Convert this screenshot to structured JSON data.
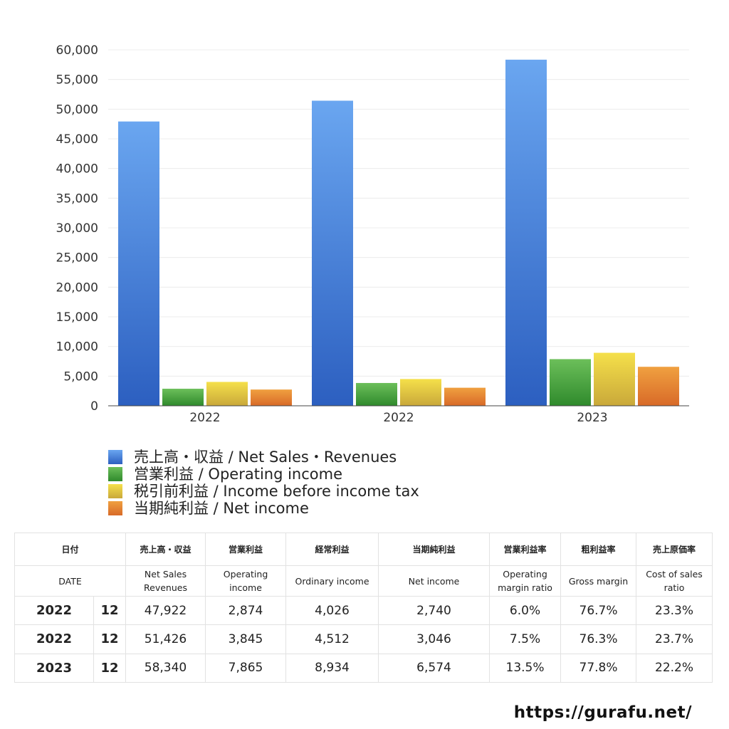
{
  "chart_data": {
    "type": "bar",
    "categories": [
      "2022",
      "2022",
      "2023"
    ],
    "series": [
      {
        "name": "売上高・収益 / Net Sales・Revenues",
        "values": [
          47922,
          51426,
          58340
        ]
      },
      {
        "name": "営業利益 / Operating income",
        "values": [
          2874,
          3845,
          7865
        ]
      },
      {
        "name": "税引前利益 / Income before income tax",
        "values": [
          4026,
          4512,
          8934
        ]
      },
      {
        "name": "当期純利益 / Net income",
        "values": [
          2740,
          3046,
          6574
        ]
      }
    ],
    "ylim": [
      0,
      60000
    ],
    "yticks": [
      "0",
      "5,000",
      "10,000",
      "15,000",
      "20,000",
      "25,000",
      "30,000",
      "35,000",
      "40,000",
      "45,000",
      "50,000",
      "55,000",
      "60,000"
    ],
    "ytick_values": [
      0,
      5000,
      10000,
      15000,
      20000,
      25000,
      30000,
      35000,
      40000,
      45000,
      50000,
      55000,
      60000
    ],
    "grid": true,
    "legend_placement": "bottom",
    "colors": [
      {
        "top": "#6aa6f0",
        "bottom": "#2c5fc0"
      },
      {
        "top": "#6cbf5a",
        "bottom": "#2f8a2c"
      },
      {
        "top": "#f5e04a",
        "bottom": "#c9a83a"
      },
      {
        "top": "#f0a040",
        "bottom": "#d86a28"
      }
    ]
  },
  "table": {
    "header_jp": [
      "日付",
      "売上高・収益",
      "営業利益",
      "経常利益",
      "当期純利益",
      "営業利益率",
      "粗利益率",
      "売上原価率"
    ],
    "header_en": [
      "DATE",
      "Net Sales Revenues",
      "Operating income",
      "Ordinary income",
      "Net income",
      "Operating margin ratio",
      "Gross margin",
      "Cost of sales ratio"
    ],
    "rows": [
      {
        "year": "2022",
        "month": "12",
        "cells": [
          "47,922",
          "2,874",
          "4,026",
          "2,740",
          "6.0%",
          "76.7%",
          "23.3%"
        ]
      },
      {
        "year": "2022",
        "month": "12",
        "cells": [
          "51,426",
          "3,845",
          "4,512",
          "3,046",
          "7.5%",
          "76.3%",
          "23.7%"
        ]
      },
      {
        "year": "2023",
        "month": "12",
        "cells": [
          "58,340",
          "7,865",
          "8,934",
          "6,574",
          "13.5%",
          "77.8%",
          "22.2%"
        ]
      }
    ]
  },
  "site_url": "https://gurafu.net/"
}
